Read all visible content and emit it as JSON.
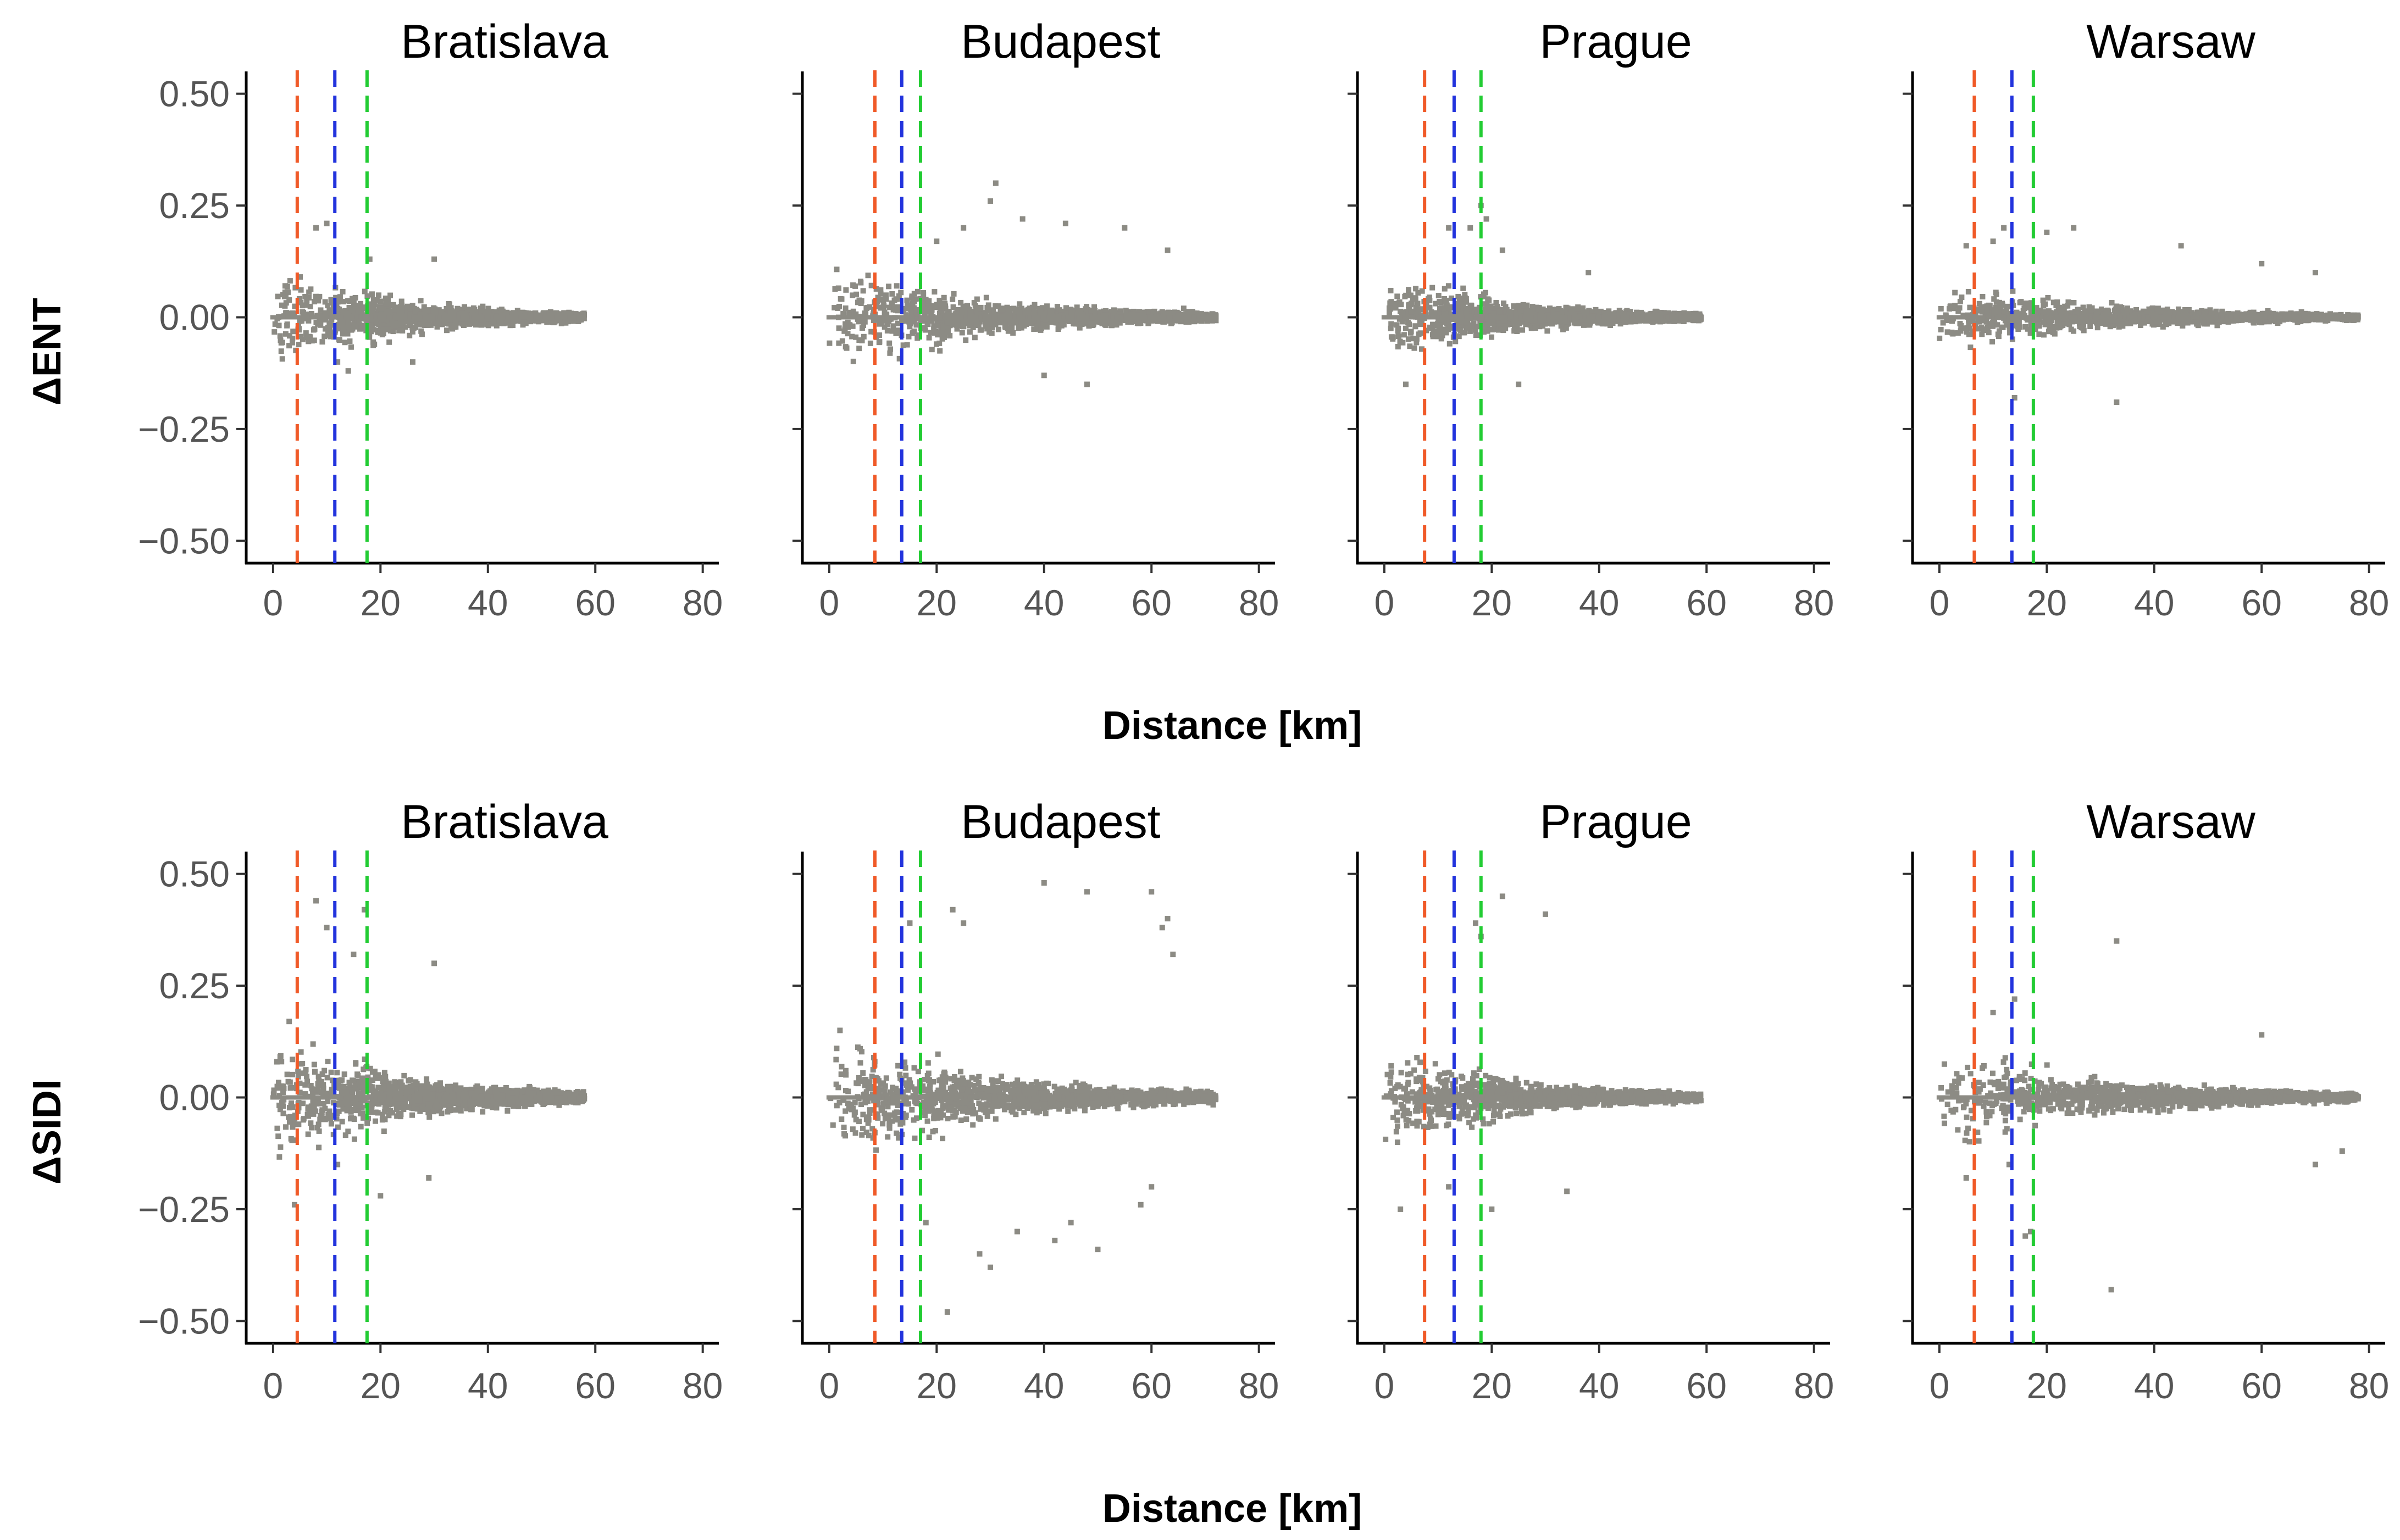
{
  "chart_data": {
    "type": "scatter",
    "cities": [
      "Bratislava",
      "Budapest",
      "Prague",
      "Warsaw"
    ],
    "x_axis": {
      "label": "Distance [km]",
      "ticks": [
        0,
        20,
        40,
        60,
        80
      ],
      "tick_labels": [
        "0",
        "20",
        "40",
        "60",
        "80"
      ],
      "xlim": [
        -5,
        83
      ]
    },
    "y_axis": {
      "ticks": [
        0.5,
        0.25,
        0.0,
        -0.25,
        -0.5
      ],
      "tick_labels": [
        "0.50",
        "0.25",
        "0.00",
        "−0.25",
        "−0.50"
      ],
      "ylim": [
        -0.55,
        0.55
      ]
    },
    "colors": {
      "points": "#8c8b84",
      "line_orange": "#f05a28",
      "line_blue": "#2233dd",
      "line_green": "#22cc33"
    },
    "vertical_lines": {
      "Bratislava": {
        "orange": 4.5,
        "blue": 11.5,
        "green": 17.5
      },
      "Budapest": {
        "orange": 8.5,
        "blue": 13.5,
        "green": 17.0
      },
      "Prague": {
        "orange": 7.5,
        "blue": 13.0,
        "green": 18.0
      },
      "Warsaw": {
        "orange": 6.5,
        "blue": 13.5,
        "green": 17.5
      }
    },
    "max_distance": {
      "Bratislava": 58,
      "Budapest": 72,
      "Prague": 59,
      "Warsaw": 78
    },
    "panels": [
      {
        "row": 1,
        "ylabel": "ΔENT",
        "spread": {
          "Bratislava": 0.07,
          "Budapest": 0.07,
          "Prague": 0.06,
          "Warsaw": 0.05
        },
        "outliers": {
          "Bratislava": [
            [
              8,
              0.2
            ],
            [
              10,
              0.21
            ],
            [
              12,
              -0.1
            ],
            [
              14,
              -0.12
            ],
            [
              18,
              0.13
            ],
            [
              26,
              -0.1
            ],
            [
              30,
              0.13
            ]
          ],
          "Budapest": [
            [
              20,
              0.17
            ],
            [
              25,
              0.2
            ],
            [
              30,
              0.26
            ],
            [
              31,
              0.3
            ],
            [
              36,
              0.22
            ],
            [
              40,
              -0.13
            ],
            [
              44,
              0.21
            ],
            [
              48,
              -0.15
            ],
            [
              55,
              0.2
            ],
            [
              63,
              0.15
            ],
            [
              66,
              0.02
            ]
          ],
          "Prague": [
            [
              4,
              -0.15
            ],
            [
              12,
              0.2
            ],
            [
              16,
              0.2
            ],
            [
              18,
              0.25
            ],
            [
              19,
              0.22
            ],
            [
              22,
              0.15
            ],
            [
              25,
              -0.15
            ],
            [
              38,
              0.1
            ]
          ],
          "Warsaw": [
            [
              5,
              0.16
            ],
            [
              10,
              0.17
            ],
            [
              12,
              0.2
            ],
            [
              14,
              -0.18
            ],
            [
              20,
              0.19
            ],
            [
              25,
              0.2
            ],
            [
              33,
              -0.19
            ],
            [
              45,
              0.16
            ],
            [
              60,
              0.12
            ],
            [
              70,
              0.1
            ]
          ]
        }
      },
      {
        "row": 2,
        "ylabel": "ΔSIDI",
        "spread": {
          "Bratislava": 0.09,
          "Budapest": 0.09,
          "Prague": 0.07,
          "Warsaw": 0.07
        },
        "outliers": {
          "Bratislava": [
            [
              3,
              0.17
            ],
            [
              4,
              -0.24
            ],
            [
              8,
              0.44
            ],
            [
              10,
              0.38
            ],
            [
              12,
              -0.15
            ],
            [
              15,
              0.32
            ],
            [
              17,
              0.42
            ],
            [
              20,
              -0.22
            ],
            [
              30,
              0.3
            ],
            [
              29,
              -0.18
            ]
          ],
          "Budapest": [
            [
              2,
              0.15
            ],
            [
              15,
              0.39
            ],
            [
              18,
              -0.28
            ],
            [
              22,
              -0.48
            ],
            [
              23,
              0.42
            ],
            [
              25,
              0.39
            ],
            [
              28,
              -0.35
            ],
            [
              30,
              -0.38
            ],
            [
              35,
              -0.3
            ],
            [
              40,
              0.48
            ],
            [
              45,
              -0.28
            ],
            [
              48,
              0.46
            ],
            [
              50,
              -0.34
            ],
            [
              58,
              -0.24
            ],
            [
              60,
              -0.2
            ],
            [
              62,
              0.38
            ],
            [
              63,
              0.4
            ],
            [
              64,
              0.32
            ],
            [
              60,
              0.46
            ],
            [
              42,
              -0.32
            ]
          ],
          "Prague": [
            [
              3,
              -0.25
            ],
            [
              12,
              -0.2
            ],
            [
              17,
              0.39
            ],
            [
              18,
              0.36
            ],
            [
              20,
              -0.25
            ],
            [
              22,
              0.45
            ],
            [
              30,
              0.41
            ],
            [
              34,
              -0.21
            ]
          ],
          "Warsaw": [
            [
              5,
              -0.18
            ],
            [
              10,
              0.19
            ],
            [
              13,
              -0.15
            ],
            [
              14,
              0.22
            ],
            [
              16,
              -0.31
            ],
            [
              17,
              -0.3
            ],
            [
              33,
              0.35
            ],
            [
              32,
              -0.43
            ],
            [
              60,
              0.14
            ],
            [
              70,
              -0.15
            ],
            [
              75,
              -0.12
            ]
          ]
        }
      }
    ]
  }
}
